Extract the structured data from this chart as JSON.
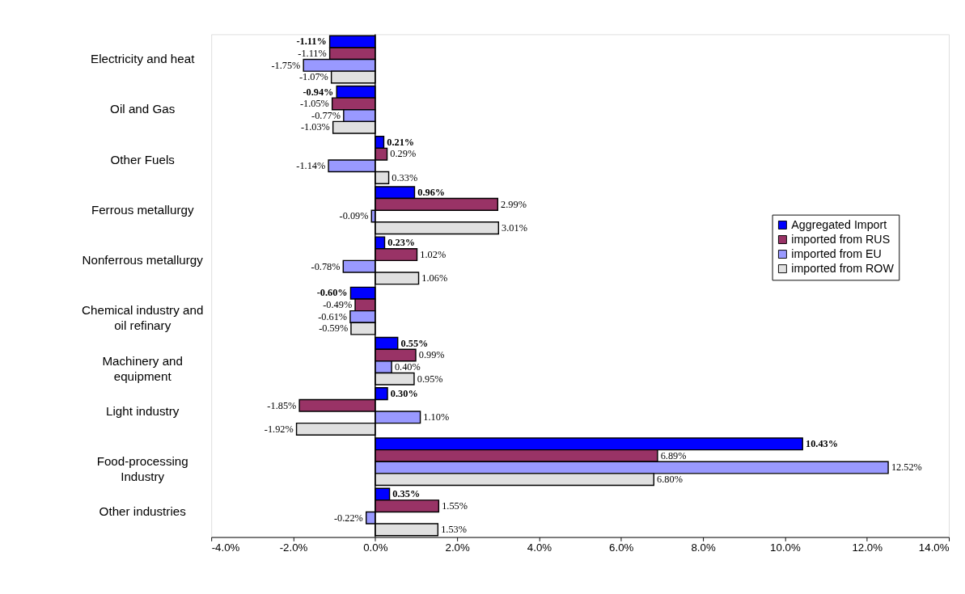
{
  "chart_data": {
    "type": "bar",
    "orientation": "horizontal",
    "categories": [
      "Electricity and heat",
      "Oil and Gas",
      "Other Fuels",
      "Ferrous metallurgy",
      "Nonferrous metallurgy",
      "Chemical industry and oil refinary",
      "Machinery and equipment",
      "Light industry",
      "Food-processing Industry",
      "Other industries"
    ],
    "series": [
      {
        "name": "Aggregated Import",
        "color": "#0000ff",
        "values": [
          -1.11,
          -0.94,
          0.21,
          0.96,
          0.23,
          -0.6,
          0.55,
          0.3,
          10.43,
          0.35
        ],
        "value_labels": [
          "-1.11%",
          "-0.94%",
          "0.21%",
          "0.96%",
          "0.23%",
          "-0.60%",
          "0.55%",
          "0.30%",
          "10.43%",
          "0.35%"
        ]
      },
      {
        "name": "imported from RUS",
        "color": "#993366",
        "values": [
          -1.11,
          -1.05,
          0.29,
          2.99,
          1.02,
          -0.49,
          0.99,
          -1.85,
          6.89,
          1.55
        ],
        "value_labels": [
          "-1.11%",
          "-1.05%",
          "0.29%",
          "2.99%",
          "1.02%",
          "-0.49%",
          "0.99%",
          "-1.85%",
          "6.89%",
          "1.55%"
        ]
      },
      {
        "name": "imported from EU",
        "color": "#9999ff",
        "values": [
          -1.75,
          -0.77,
          -1.14,
          -0.09,
          -0.78,
          -0.61,
          0.4,
          1.1,
          12.52,
          -0.22
        ],
        "value_labels": [
          "-1.75%",
          "-0.77%",
          "-1.14%",
          "-0.09%",
          "-0.78%",
          "-0.61%",
          "0.40%",
          "1.10%",
          "12.52%",
          "-0.22%"
        ]
      },
      {
        "name": "imported from ROW",
        "color": "#e0e0e0",
        "values": [
          -1.07,
          -1.03,
          0.33,
          3.01,
          1.06,
          -0.59,
          0.95,
          -1.92,
          6.8,
          1.53
        ],
        "value_labels": [
          "-1.07%",
          "-1.03%",
          "0.33%",
          "3.01%",
          "1.06%",
          "-0.59%",
          "0.95%",
          "-1.92%",
          "6.80%",
          "1.53%"
        ]
      }
    ],
    "xlim": [
      -4,
      14
    ],
    "xticks": [
      {
        "value": -4,
        "label": "-4.0%"
      },
      {
        "value": -2,
        "label": "-2.0%"
      },
      {
        "value": 0,
        "label": "0.0%"
      },
      {
        "value": 2,
        "label": "2.0%"
      },
      {
        "value": 4,
        "label": "4.0%"
      },
      {
        "value": 6,
        "label": "6.0%"
      },
      {
        "value": 8,
        "label": "8.0%"
      },
      {
        "value": 10,
        "label": "10.0%"
      },
      {
        "value": 12,
        "label": "12.0%"
      },
      {
        "value": 14,
        "label": "14.0%"
      }
    ],
    "ref_lines": [
      {
        "axis": "x",
        "value": 0
      }
    ],
    "legend": "right",
    "grid": false
  }
}
